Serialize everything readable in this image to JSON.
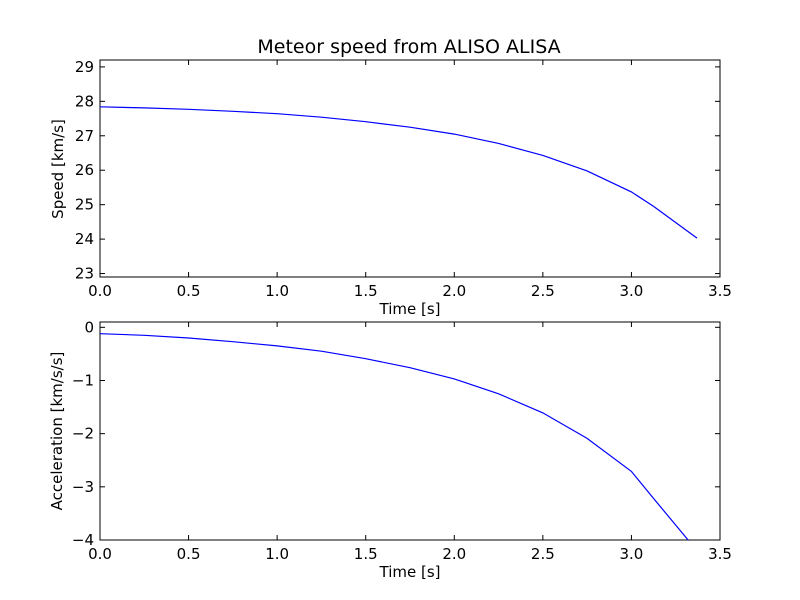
{
  "chart_data": [
    {
      "type": "line",
      "title": "Meteor speed from  ALISO ALISA",
      "xlabel": "Time [s]",
      "ylabel": "Speed [km/s]",
      "xlim": [
        0.0,
        3.5
      ],
      "ylim": [
        22.9,
        29.2
      ],
      "xticks": [
        "0.0",
        "0.5",
        "1.0",
        "1.5",
        "2.0",
        "2.5",
        "3.0",
        "3.5"
      ],
      "yticks": [
        "23",
        "24",
        "25",
        "26",
        "27",
        "28",
        "29"
      ],
      "grid": false,
      "line_color": "#0000ff",
      "series": [
        {
          "x": [
            0.0,
            0.25,
            0.5,
            0.75,
            1.0,
            1.25,
            1.5,
            1.75,
            2.0,
            2.25,
            2.5,
            2.75,
            3.0,
            3.125,
            3.37
          ],
          "y": [
            27.84,
            27.81,
            27.77,
            27.71,
            27.64,
            27.54,
            27.41,
            27.25,
            27.05,
            26.78,
            26.43,
            25.98,
            25.37,
            24.95,
            24.03
          ]
        }
      ]
    },
    {
      "type": "line",
      "title": "",
      "xlabel": "Time [s]",
      "ylabel": "Acceleration [km/s/s]",
      "xlim": [
        0.0,
        3.5
      ],
      "ylim": [
        -4.0,
        0.1
      ],
      "xticks": [
        "0.0",
        "0.5",
        "1.0",
        "1.5",
        "2.0",
        "2.5",
        "3.0",
        "3.5"
      ],
      "yticks": [
        "0",
        "−1",
        "−2",
        "−3",
        "−4"
      ],
      "grid": false,
      "line_color": "#0000ff",
      "series": [
        {
          "x": [
            0.0,
            0.25,
            0.5,
            0.75,
            1.0,
            1.25,
            1.5,
            1.75,
            2.0,
            2.25,
            2.5,
            2.75,
            3.0,
            3.125,
            3.32
          ],
          "y": [
            -0.12,
            -0.15,
            -0.2,
            -0.27,
            -0.35,
            -0.45,
            -0.59,
            -0.76,
            -0.97,
            -1.25,
            -1.61,
            -2.09,
            -2.71,
            -3.22,
            -4.0
          ]
        }
      ]
    }
  ]
}
